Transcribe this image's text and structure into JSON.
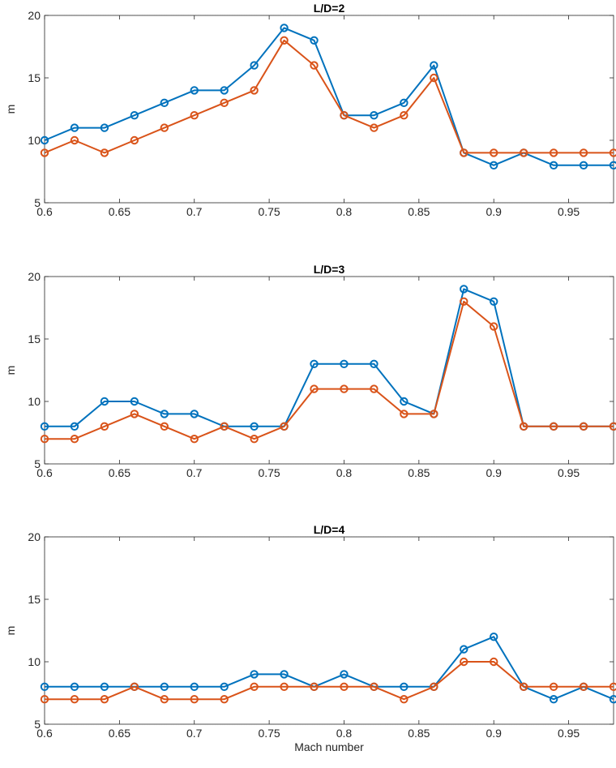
{
  "chart_data": [
    {
      "type": "line",
      "title": "L/D=2",
      "xlabel": "",
      "ylabel": "m",
      "xlim": [
        0.6,
        0.98
      ],
      "ylim": [
        5,
        20
      ],
      "xticks": [
        0.6,
        0.65,
        0.7,
        0.75,
        0.8,
        0.85,
        0.9,
        0.95
      ],
      "yticks": [
        5,
        10,
        15,
        20
      ],
      "xtick_labels": [
        "0.6",
        "0.65",
        "0.7",
        "0.75",
        "0.8",
        "0.85",
        "0.9",
        "0.95"
      ],
      "ytick_labels": [
        "5",
        "10",
        "15",
        "20"
      ],
      "grid": true,
      "minor_grid": true,
      "x": [
        0.6,
        0.62,
        0.64,
        0.66,
        0.68,
        0.7,
        0.72,
        0.74,
        0.76,
        0.78,
        0.8,
        0.82,
        0.84,
        0.86,
        0.88,
        0.9,
        0.92,
        0.94,
        0.96,
        0.98
      ],
      "series": [
        {
          "color": "#0072BD",
          "marker": "circle",
          "values": [
            10,
            11,
            11,
            12,
            13,
            14,
            14,
            16,
            19,
            18,
            12,
            12,
            13,
            16,
            9,
            8,
            9,
            8,
            8,
            8
          ]
        },
        {
          "color": "#D95319",
          "marker": "circle",
          "values": [
            9,
            10,
            9,
            10,
            11,
            12,
            13,
            14,
            18,
            16,
            12,
            11,
            12,
            15,
            9,
            9,
            9,
            9,
            9,
            9
          ]
        }
      ]
    },
    {
      "type": "line",
      "title": "L/D=3",
      "xlabel": "",
      "ylabel": "m",
      "xlim": [
        0.6,
        0.98
      ],
      "ylim": [
        5,
        20
      ],
      "xticks": [
        0.6,
        0.65,
        0.7,
        0.75,
        0.8,
        0.85,
        0.9,
        0.95
      ],
      "yticks": [
        5,
        10,
        15,
        20
      ],
      "xtick_labels": [
        "0.6",
        "0.65",
        "0.7",
        "0.75",
        "0.8",
        "0.85",
        "0.9",
        "0.95"
      ],
      "ytick_labels": [
        "5",
        "10",
        "15",
        "20"
      ],
      "grid": true,
      "minor_grid": true,
      "x": [
        0.6,
        0.62,
        0.64,
        0.66,
        0.68,
        0.7,
        0.72,
        0.74,
        0.76,
        0.78,
        0.8,
        0.82,
        0.84,
        0.86,
        0.88,
        0.9,
        0.92,
        0.94,
        0.96,
        0.98
      ],
      "series": [
        {
          "color": "#0072BD",
          "marker": "circle",
          "values": [
            8,
            8,
            10,
            10,
            9,
            9,
            8,
            8,
            8,
            13,
            13,
            13,
            10,
            9,
            19,
            18,
            8,
            8,
            8,
            8
          ]
        },
        {
          "color": "#D95319",
          "marker": "circle",
          "values": [
            7,
            7,
            8,
            9,
            8,
            7,
            8,
            7,
            8,
            11,
            11,
            11,
            9,
            9,
            18,
            16,
            8,
            8,
            8,
            8
          ]
        }
      ]
    },
    {
      "type": "line",
      "title": "L/D=4",
      "xlabel": "Mach number",
      "ylabel": "m",
      "xlim": [
        0.6,
        0.98
      ],
      "ylim": [
        5,
        20
      ],
      "xticks": [
        0.6,
        0.65,
        0.7,
        0.75,
        0.8,
        0.85,
        0.9,
        0.95
      ],
      "yticks": [
        5,
        10,
        15,
        20
      ],
      "xtick_labels": [
        "0.6",
        "0.65",
        "0.7",
        "0.75",
        "0.8",
        "0.85",
        "0.9",
        "0.95"
      ],
      "ytick_labels": [
        "5",
        "10",
        "15",
        "20"
      ],
      "grid": true,
      "minor_grid": true,
      "x": [
        0.6,
        0.62,
        0.64,
        0.66,
        0.68,
        0.7,
        0.72,
        0.74,
        0.76,
        0.78,
        0.8,
        0.82,
        0.84,
        0.86,
        0.88,
        0.9,
        0.92,
        0.94,
        0.96,
        0.98
      ],
      "series": [
        {
          "color": "#0072BD",
          "marker": "circle",
          "values": [
            8,
            8,
            8,
            8,
            8,
            8,
            8,
            9,
            9,
            8,
            9,
            8,
            8,
            8,
            11,
            12,
            8,
            7,
            8,
            7
          ]
        },
        {
          "color": "#D95319",
          "marker": "circle",
          "values": [
            7,
            7,
            7,
            8,
            7,
            7,
            7,
            8,
            8,
            8,
            8,
            8,
            7,
            8,
            10,
            10,
            8,
            8,
            8,
            8
          ]
        }
      ]
    }
  ]
}
